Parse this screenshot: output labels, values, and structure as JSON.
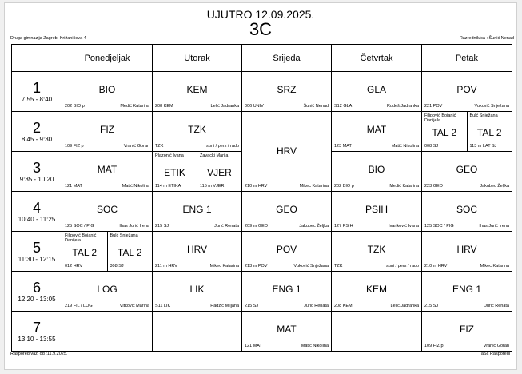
{
  "title": "UJUTRO 12.09.2025.",
  "class_name": "3C",
  "school": "Druga gimnazija Zagreb, Križanićeva 4",
  "homeroom": "Razrednik/ca : Šunić Nenad",
  "days": [
    "Ponedjeljak",
    "Utorak",
    "Srijeda",
    "Četvrtak",
    "Petak"
  ],
  "periods": [
    {
      "num": "1",
      "time": "7:55 - 8:40",
      "cells": [
        {
          "subject": "BIO",
          "room": "202 BIO p",
          "teacher": "Medić Katarina"
        },
        {
          "subject": "KEM",
          "room": "208 KEM",
          "teacher": "Lelić Jadranka"
        },
        {
          "subject": "SRZ",
          "room": "006 UNIV",
          "teacher": "Šunić Nenad"
        },
        {
          "subject": "GLA",
          "room": "S12 GLA",
          "teacher": "Rudeš Jadranka"
        },
        {
          "subject": "POV",
          "room": "221 POV",
          "teacher": "Vuković Snježana"
        }
      ]
    },
    {
      "num": "2",
      "time": "8:45 - 9:30",
      "cells": [
        {
          "subject": "FIZ",
          "room": "109 FIZ p",
          "teacher": "Vranić Goran"
        },
        {
          "subject": "TZK",
          "room": "TZK",
          "teacher": "suni / pers / rado"
        },
        {
          "subject": "HRV",
          "room": "210 m HRV",
          "teacher": "Mikec Katarina",
          "rowspan": 2
        },
        {
          "subject": "MAT",
          "room": "123 MAT",
          "teacher": "Matić Nikolina"
        },
        {
          "split": [
            {
              "subject": "TAL 2",
              "room": "008 SJ",
              "teacher": "Filipović Bojanić Danijela"
            },
            {
              "subject": "TAL 2",
              "room": "113 m LAT SJ",
              "teacher": "Bulć Snježana"
            }
          ]
        }
      ]
    },
    {
      "num": "3",
      "time": "9:35 - 10:20",
      "cells": [
        {
          "subject": "MAT",
          "room": "121 MAT",
          "teacher": "Matić Nikolina"
        },
        {
          "split": [
            {
              "subject": "ETIK",
              "room": "114 m ETIKA",
              "teacher": "Plazonić Ivana"
            },
            {
              "subject": "VJER",
              "room": "115 m VJER",
              "teacher": "Zavacki Marija"
            }
          ]
        },
        {
          "skip": true
        },
        {
          "subject": "BIO",
          "room": "202 BIO p",
          "teacher": "Medić Katarina"
        },
        {
          "subject": "GEO",
          "room": "223 GEO",
          "teacher": "Jakubec Željka"
        }
      ]
    },
    {
      "num": "4",
      "time": "10:40 - 11:25",
      "cells": [
        {
          "subject": "SOC",
          "room": "125 SOC / PIG",
          "teacher": "Ihas Jurić Irena"
        },
        {
          "subject": "ENG 1",
          "room": "215 SJ",
          "teacher": "Jurić Renata"
        },
        {
          "subject": "GEO",
          "room": "209 m GEO",
          "teacher": "Jakubec Željka"
        },
        {
          "subject": "PSIH",
          "room": "127 PSIH",
          "teacher": "Ivanković Ivana"
        },
        {
          "subject": "SOC",
          "room": "125 SOC / PIG",
          "teacher": "Ihas Jurić Irena"
        }
      ]
    },
    {
      "num": "5",
      "time": "11:30 - 12:15",
      "cells": [
        {
          "split": [
            {
              "subject": "TAL 2",
              "room": "012 HRV",
              "teacher": "Filipović Bojanić Danijela"
            },
            {
              "subject": "TAL 2",
              "room": "308 SJ",
              "teacher": "Bulć Snježana"
            }
          ]
        },
        {
          "subject": "HRV",
          "room": "211 m HRV",
          "teacher": "Mikec Katarina"
        },
        {
          "subject": "POV",
          "room": "213 m POV",
          "teacher": "Vuković Snježana"
        },
        {
          "subject": "TZK",
          "room": "TZK",
          "teacher": "suni / pers / rado"
        },
        {
          "subject": "HRV",
          "room": "210 m HRV",
          "teacher": "Mikec Katarina"
        }
      ]
    },
    {
      "num": "6",
      "time": "12:20 - 13:05",
      "cells": [
        {
          "subject": "LOG",
          "room": "219 FIL / LOG",
          "teacher": "Vitković Marina"
        },
        {
          "subject": "LIK",
          "room": "S11 LIK",
          "teacher": "Hadžić Miljana"
        },
        {
          "subject": "ENG 1",
          "room": "215 SJ",
          "teacher": "Jurić Renata"
        },
        {
          "subject": "KEM",
          "room": "208 KEM",
          "teacher": "Lelić Jadranka"
        },
        {
          "subject": "ENG 1",
          "room": "215 SJ",
          "teacher": "Jurić Renata"
        }
      ]
    },
    {
      "num": "7",
      "time": "13:10 - 13:55",
      "cells": [
        {},
        {},
        {
          "subject": "MAT",
          "room": "121 MAT",
          "teacher": "Matić Nikolina"
        },
        {},
        {
          "subject": "FIZ",
          "room": "109 FIZ p",
          "teacher": "Vranić Goran"
        }
      ]
    }
  ],
  "footer_left": "Raspored važi od :11.9.2025.",
  "footer_right": "aSc Rasporedi"
}
